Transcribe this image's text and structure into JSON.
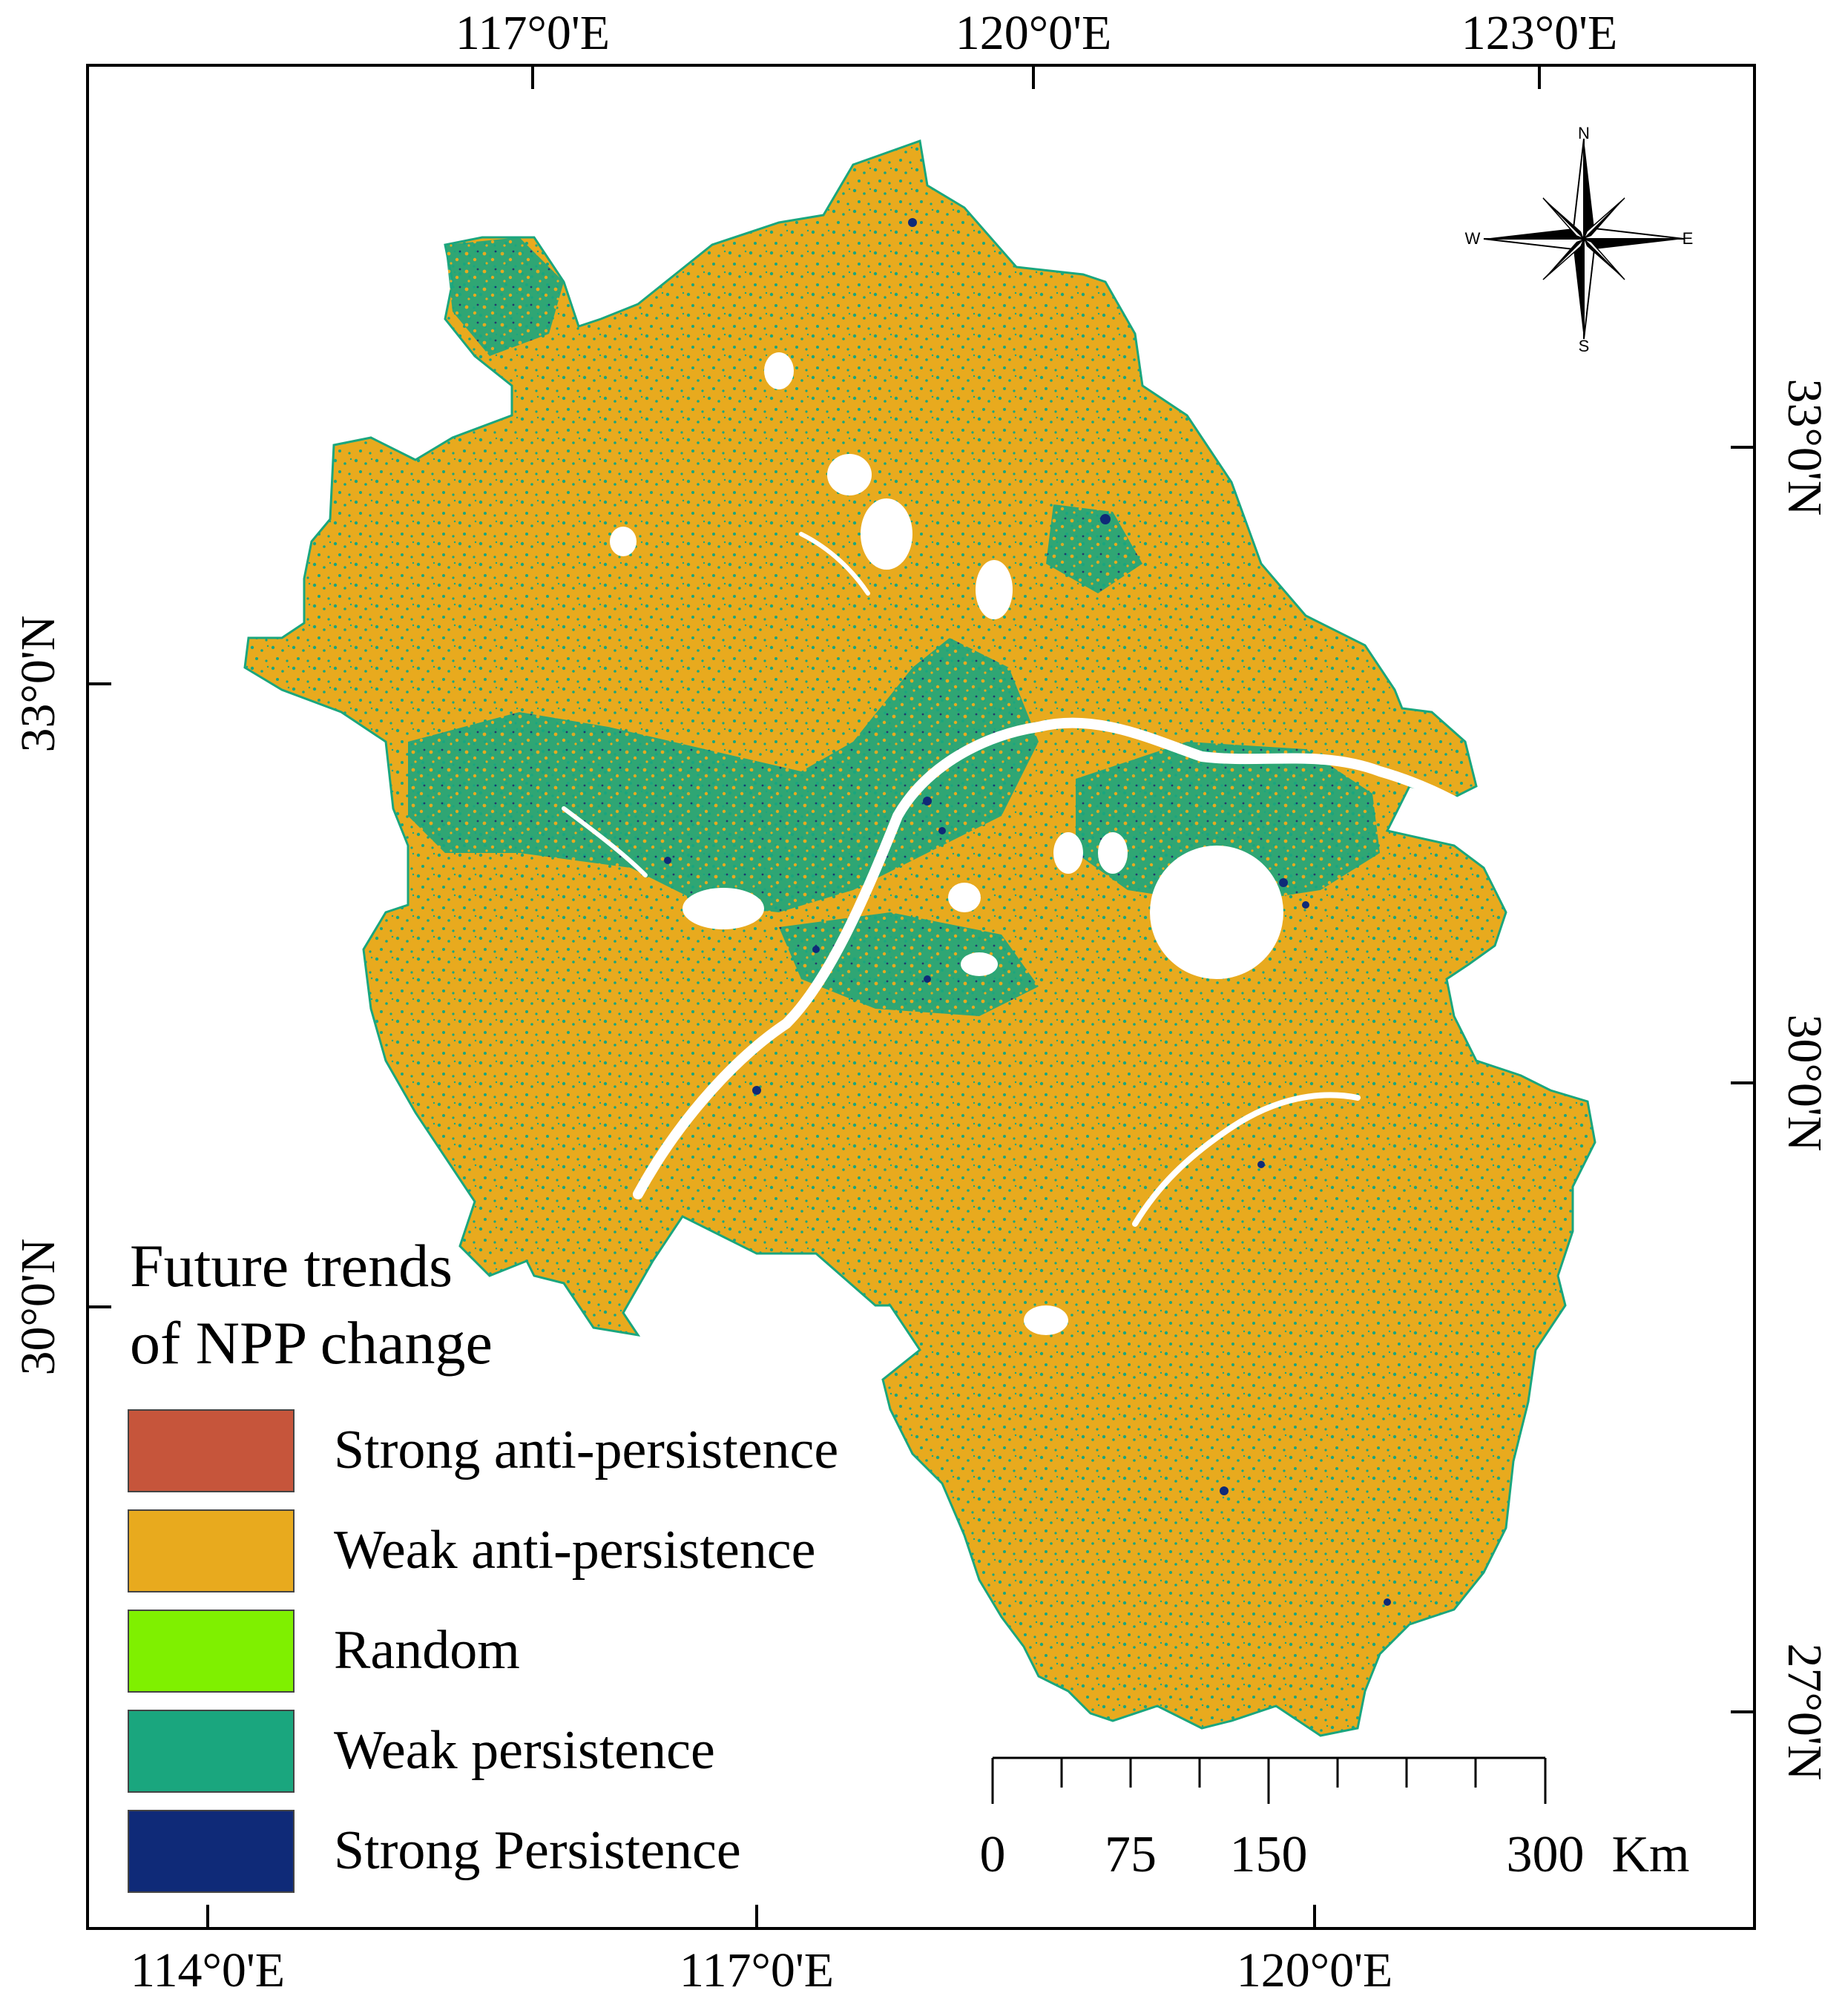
{
  "map": {
    "top_lon_labels": [
      "117°0'E",
      "120°0'E",
      "123°0'E"
    ],
    "bottom_lon_labels": [
      "114°0'E",
      "117°0'E",
      "120°0'E"
    ],
    "left_lat_labels": [
      "33°0'N",
      "30°0'N"
    ],
    "right_lat_labels": [
      "33°0'N",
      "30°0'N",
      "27°0'N"
    ],
    "colors": {
      "strong_anti_persistence": "#c6553b",
      "weak_anti_persistence": "#e8aa1e",
      "random": "#7ff000",
      "weak_persistence": "#1aa67e",
      "strong_persistence": "#0f2a78"
    }
  },
  "legend": {
    "title_line1": "Future trends",
    "title_line2": "of NPP change",
    "items": [
      {
        "label": "Strong anti-persistence",
        "color": "#c6553b"
      },
      {
        "label": "Weak anti-persistence",
        "color": "#e8aa1e"
      },
      {
        "label": "Random",
        "color": "#7ff000"
      },
      {
        "label": "Weak persistence",
        "color": "#1aa67e"
      },
      {
        "label": "Strong Persistence",
        "color": "#0f2a78"
      }
    ]
  },
  "scale_bar": {
    "labels": [
      "0",
      "75",
      "150",
      "300"
    ],
    "unit": "Km"
  },
  "north_arrow": {
    "n": "N",
    "s": "S",
    "e": "E",
    "w": "W"
  }
}
